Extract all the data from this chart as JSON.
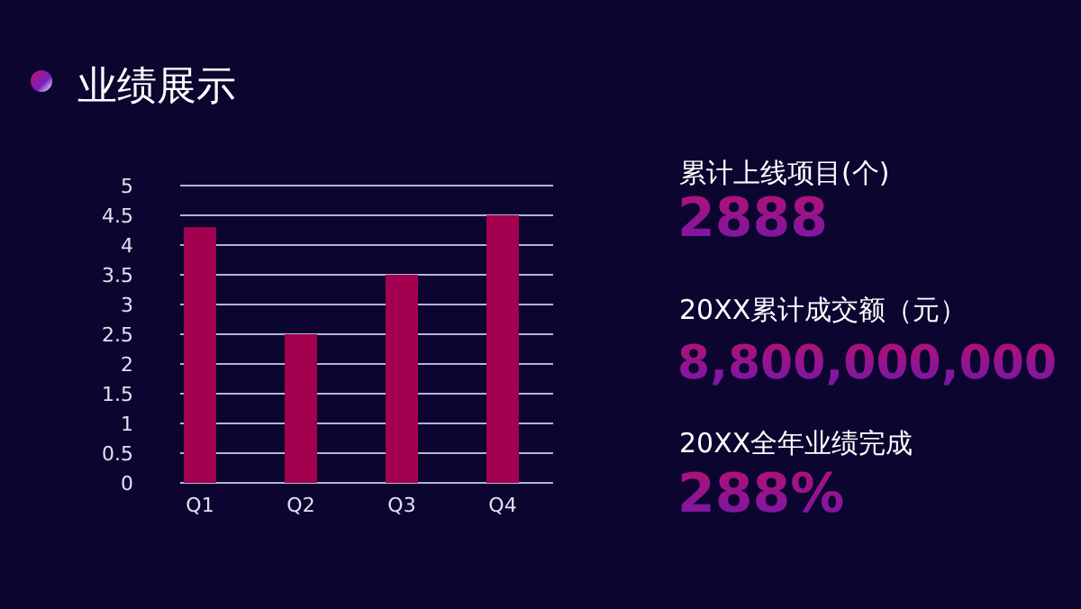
{
  "chart_data": [
    {
      "type": "bar",
      "title": "业绩展示",
      "categories": [
        "Q1",
        "Q2",
        "Q3",
        "Q4"
      ],
      "values": [
        4.3,
        2.5,
        3.5,
        4.5
      ],
      "color": "#a3004f",
      "ylim": [
        0,
        5
      ],
      "yticks": [
        0,
        0.5,
        1,
        1.5,
        2,
        2.5,
        3,
        3.5,
        4,
        4.5,
        5
      ],
      "grid": "y"
    },
    {
      "type": "other",
      "annotations": [
        "累计上线项目(个)",
        "2888",
        "20XX累计成交额（元）",
        "8,800,000,000",
        "20XX全年业绩完成",
        "288%"
      ]
    }
  ]
}
